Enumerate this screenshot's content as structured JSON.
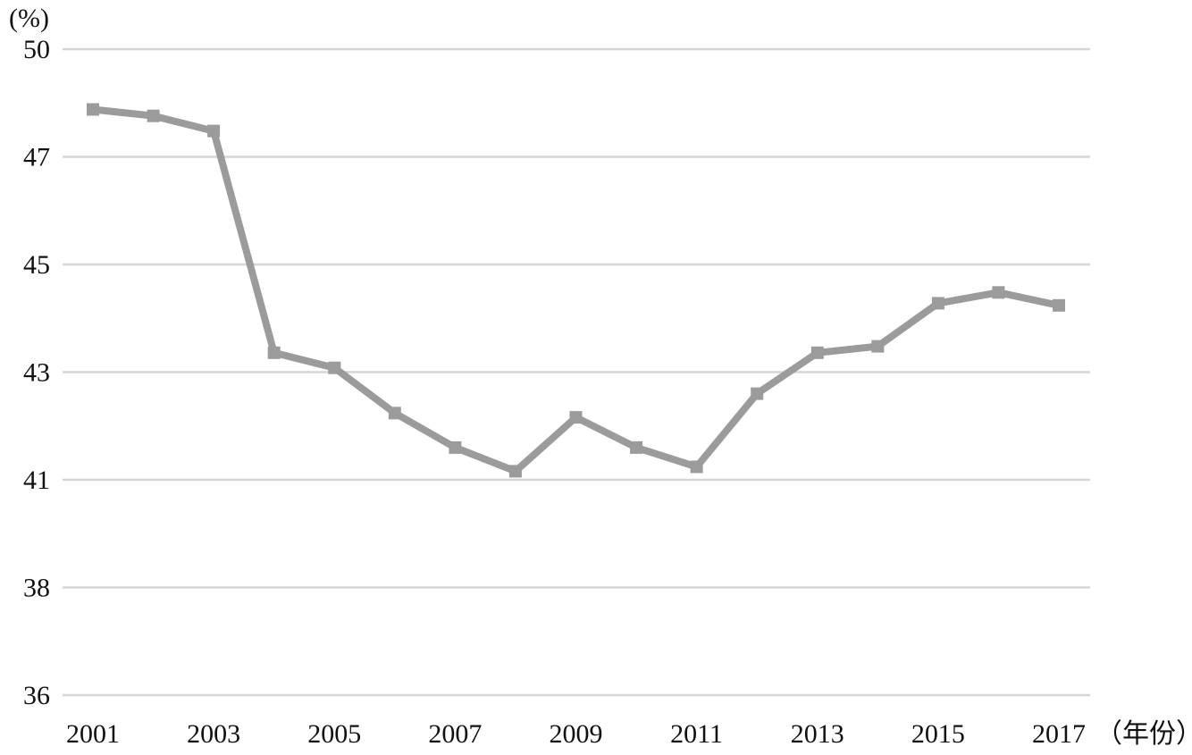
{
  "chart_data": {
    "type": "line",
    "ylabel": "(%)",
    "xlabel": "（年份）",
    "y_ticks": [
      "50",
      "47",
      "45",
      "43",
      "41",
      "38",
      "36"
    ],
    "x_ticks": [
      "2001",
      "2003",
      "2005",
      "2007",
      "2009",
      "2011",
      "2013",
      "2015",
      "2017"
    ],
    "x": [
      2001,
      2002,
      2003,
      2004,
      2005,
      2006,
      2007,
      2008,
      2009,
      2010,
      2011,
      2012,
      2013,
      2014,
      2015,
      2016,
      2017
    ],
    "series": [
      {
        "values": [
          48.6,
          48.45,
          48.1,
          42.95,
          42.6,
          41.55,
          40.75,
          40.2,
          41.45,
          40.75,
          40.3,
          42.0,
          42.95,
          43.1,
          44.1,
          44.35,
          44.05
        ]
      }
    ],
    "grid": true,
    "colors": {
      "series": "#9b9b9b",
      "grid": "#d6d6d6"
    }
  }
}
